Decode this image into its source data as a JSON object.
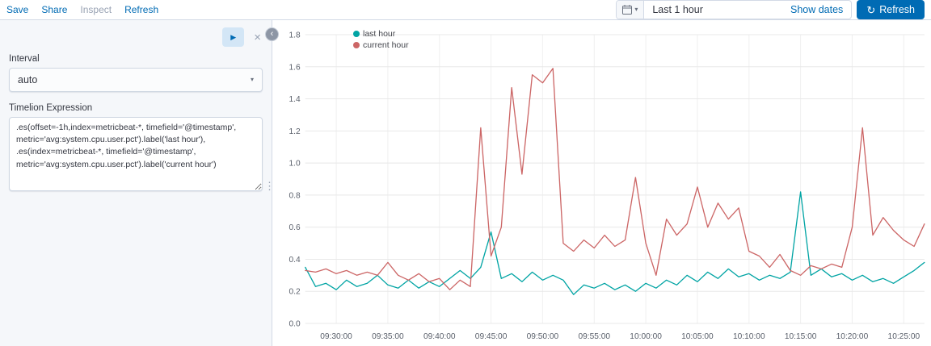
{
  "topbar": {
    "nav": [
      {
        "label": "Save"
      },
      {
        "label": "Share"
      },
      {
        "label": "Inspect"
      },
      {
        "label": "Refresh"
      }
    ],
    "time": {
      "range": "Last 1 hour",
      "show_dates": "Show dates",
      "refresh_label": "Refresh"
    }
  },
  "panel": {
    "interval_label": "Interval",
    "interval_value": "auto",
    "expression_label": "Timelion Expression",
    "expression_value": ".es(offset=-1h,index=metricbeat-*, timefield='@timestamp',\nmetric='avg:system.cpu.user.pct').label('last hour'),\n.es(index=metricbeat-*, timefield='@timestamp',\nmetric='avg:system.cpu.user.pct').label('current hour')"
  },
  "chart_data": {
    "type": "line",
    "title": "",
    "xlabel": "",
    "ylabel": "",
    "ylim": [
      0,
      1.8
    ],
    "grid": true,
    "legend_position": "top-left",
    "y_ticks": [
      0,
      0.2,
      0.4,
      0.6,
      0.8,
      1.0,
      1.2,
      1.4,
      1.6,
      1.8
    ],
    "x_ticks": [
      {
        "label": "09:30:00",
        "pos": 0.05
      },
      {
        "label": "09:35:00",
        "pos": 0.1333
      },
      {
        "label": "09:40:00",
        "pos": 0.2167
      },
      {
        "label": "09:45:00",
        "pos": 0.3
      },
      {
        "label": "09:50:00",
        "pos": 0.3833
      },
      {
        "label": "09:55:00",
        "pos": 0.4667
      },
      {
        "label": "10:00:00",
        "pos": 0.55
      },
      {
        "label": "10:05:00",
        "pos": 0.6333
      },
      {
        "label": "10:10:00",
        "pos": 0.7167
      },
      {
        "label": "10:15:00",
        "pos": 0.8
      },
      {
        "label": "10:20:00",
        "pos": 0.8833
      },
      {
        "label": "10:25:00",
        "pos": 0.9667
      }
    ],
    "series": [
      {
        "name": "last hour",
        "color": "#01A4A4",
        "values": [
          0.35,
          0.23,
          0.25,
          0.21,
          0.27,
          0.23,
          0.25,
          0.3,
          0.24,
          0.22,
          0.27,
          0.22,
          0.26,
          0.23,
          0.28,
          0.33,
          0.28,
          0.35,
          0.57,
          0.28,
          0.31,
          0.26,
          0.32,
          0.27,
          0.3,
          0.27,
          0.18,
          0.24,
          0.22,
          0.25,
          0.21,
          0.24,
          0.2,
          0.25,
          0.22,
          0.27,
          0.24,
          0.3,
          0.26,
          0.32,
          0.28,
          0.34,
          0.29,
          0.31,
          0.27,
          0.3,
          0.28,
          0.32,
          0.82,
          0.3,
          0.34,
          0.29,
          0.31,
          0.27,
          0.3,
          0.26,
          0.28,
          0.25,
          0.29,
          0.33,
          0.38
        ]
      },
      {
        "name": "current hour",
        "color": "#CC6666",
        "values": [
          0.33,
          0.32,
          0.34,
          0.31,
          0.33,
          0.3,
          0.32,
          0.3,
          0.38,
          0.3,
          0.27,
          0.31,
          0.26,
          0.28,
          0.21,
          0.27,
          0.23,
          1.22,
          0.42,
          0.6,
          1.47,
          0.93,
          1.55,
          1.5,
          1.59,
          0.5,
          0.45,
          0.52,
          0.47,
          0.55,
          0.48,
          0.52,
          0.91,
          0.5,
          0.3,
          0.65,
          0.55,
          0.62,
          0.85,
          0.6,
          0.75,
          0.65,
          0.72,
          0.45,
          0.42,
          0.35,
          0.43,
          0.33,
          0.3,
          0.36,
          0.34,
          0.37,
          0.35,
          0.6,
          1.22,
          0.55,
          0.66,
          0.58,
          0.52,
          0.48,
          0.62
        ]
      }
    ]
  }
}
